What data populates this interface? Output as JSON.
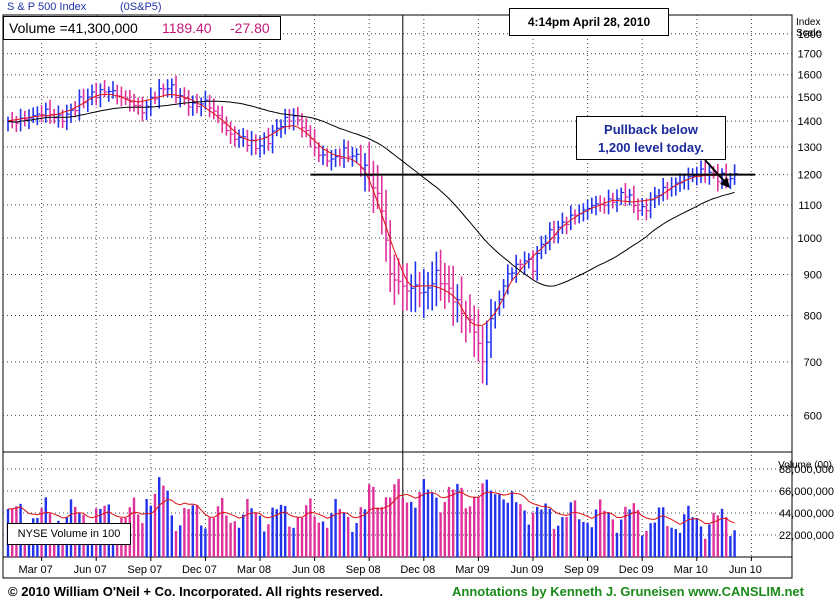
{
  "header": {
    "index_name": "S & P 500 Index",
    "symbol": "(0S&P5)",
    "volume_text": "Volume =41,300,000",
    "price": "1189.40",
    "change": "-27.80",
    "date": "4:14pm April 28, 2010",
    "scale_label_1": "Index",
    "scale_label_2": "Scale"
  },
  "annotation": {
    "line1": "Pullback below",
    "line2": "1,200 level today."
  },
  "volume_box_label": "NYSE Volume in 100",
  "footer": {
    "copyright": "© 2010 William O'Neil + Co. Incorporated. All rights reserved.",
    "annotations": "Annotations by Kenneth J. Gruneisen www.CANSLIM.net"
  },
  "colors": {
    "up": "#2233ee",
    "down": "#e0309a",
    "ma_fast": "#dd1111",
    "ma_slow": "#000000",
    "accent_text": "#c2187a",
    "link_green": "#1a8a1a"
  },
  "chart_data": {
    "type": "bar",
    "subtype": "ohlc-weekly-with-volume",
    "y_scale": "log",
    "price_ticks": [
      600,
      700,
      800,
      900,
      1000,
      1100,
      1200,
      1300,
      1400,
      1500,
      1600,
      1700,
      1800
    ],
    "volume_label": "Volume (00)",
    "volume_ticks": [
      "22,000,000",
      "44,000,000",
      "66,000,000",
      "88,000,000"
    ],
    "volume_tick_values": [
      22000000,
      44000000,
      66000000,
      88000000
    ],
    "x_ticks": [
      "Mar 07",
      "Jun 07",
      "Sep 07",
      "Dec 07",
      "Mar 08",
      "Jun 08",
      "Sep 08",
      "Dec 08",
      "Mar 09",
      "Jun 09",
      "Sep 09",
      "Dec 09",
      "Mar 10",
      "Jun 10"
    ],
    "x_tick_weeks": [
      8,
      21,
      34,
      47,
      60,
      73,
      86,
      99,
      112,
      125,
      138,
      151,
      164,
      177
    ],
    "reference_line": {
      "value": 1200
    },
    "week_count": 174,
    "price_anchors": [
      [
        0,
        1390
      ],
      [
        6,
        1420
      ],
      [
        9,
        1440
      ],
      [
        12,
        1410
      ],
      [
        14,
        1420
      ],
      [
        17,
        1480
      ],
      [
        20,
        1510
      ],
      [
        24,
        1530
      ],
      [
        28,
        1490
      ],
      [
        30,
        1470
      ],
      [
        32,
        1440
      ],
      [
        35,
        1510
      ],
      [
        38,
        1550
      ],
      [
        41,
        1500
      ],
      [
        44,
        1460
      ],
      [
        47,
        1480
      ],
      [
        50,
        1420
      ],
      [
        53,
        1340
      ],
      [
        56,
        1330
      ],
      [
        59,
        1300
      ],
      [
        62,
        1330
      ],
      [
        65,
        1390
      ],
      [
        68,
        1420
      ],
      [
        71,
        1360
      ],
      [
        74,
        1270
      ],
      [
        77,
        1250
      ],
      [
        80,
        1280
      ],
      [
        83,
        1260
      ],
      [
        86,
        1200
      ],
      [
        89,
        1090
      ],
      [
        91,
        900
      ],
      [
        93,
        880
      ],
      [
        95,
        860
      ],
      [
        97,
        870
      ],
      [
        99,
        850
      ],
      [
        102,
        900
      ],
      [
        105,
        860
      ],
      [
        108,
        810
      ],
      [
        111,
        770
      ],
      [
        113,
        700
      ],
      [
        115,
        790
      ],
      [
        117,
        840
      ],
      [
        119,
        900
      ],
      [
        121,
        920
      ],
      [
        123,
        940
      ],
      [
        125,
        920
      ],
      [
        127,
        980
      ],
      [
        129,
        1010
      ],
      [
        131,
        1030
      ],
      [
        133,
        1050
      ],
      [
        135,
        1070
      ],
      [
        137,
        1080
      ],
      [
        139,
        1100
      ],
      [
        141,
        1100
      ],
      [
        143,
        1110
      ],
      [
        145,
        1120
      ],
      [
        147,
        1140
      ],
      [
        149,
        1100
      ],
      [
        151,
        1080
      ],
      [
        153,
        1110
      ],
      [
        155,
        1140
      ],
      [
        158,
        1160
      ],
      [
        162,
        1190
      ],
      [
        165,
        1210
      ],
      [
        167,
        1205
      ],
      [
        169,
        1190
      ]
    ]
  }
}
